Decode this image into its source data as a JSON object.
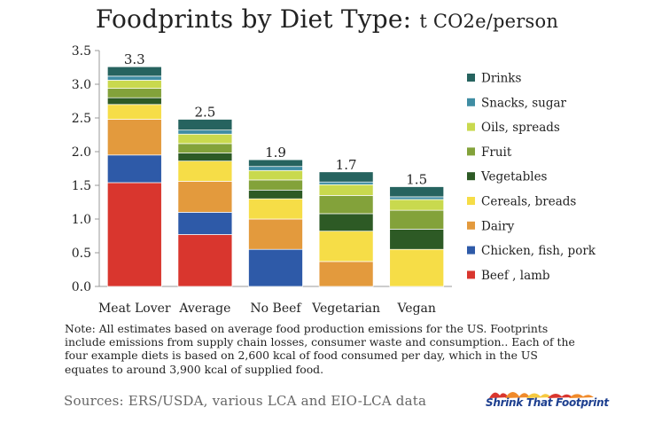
{
  "title": {
    "main": "Foodprints by Diet Type: ",
    "unit": "t CO2e/person"
  },
  "note": "Note: All estimates based on average food production emissions for the US. Footprints include emissions from supply chain losses, consumer waste and consumption.. Each of the four example diets is based on 2,600 kcal of food consumed per day, which in the US equates to around 3,900 kcal of supplied food.",
  "sources": "Sources:  ERS/USDA, various LCA and EIO-LCA data",
  "logo": {
    "text": "Shrink That Footprint"
  },
  "colors": {
    "beef_lamb": "#d9362e",
    "chicken_fish_pork": "#2e5aa8",
    "dairy": "#e39a3d",
    "cereals_breads": "#f6dd47",
    "vegetables": "#2d5a25",
    "fruit": "#83a23a",
    "oils_spreads": "#c9d94e",
    "snacks_sugar": "#3f8da3",
    "drinks": "#26635f"
  },
  "chart_data": {
    "type": "bar",
    "stacked": true,
    "categories": [
      "Meat Lover",
      "Average",
      "No Beef",
      "Vegetarian",
      "Vegan"
    ],
    "totals": [
      "3.3",
      "2.5",
      "1.9",
      "1.7",
      "1.5"
    ],
    "ylim": [
      0,
      3.5
    ],
    "yticks": [
      "0.0",
      "0.5",
      "1.0",
      "1.5",
      "2.0",
      "2.5",
      "3.0",
      "3.5"
    ],
    "grid": false,
    "legend_position": "right",
    "series": [
      {
        "name": "Beef , lamb",
        "color": "#d9362e",
        "values": [
          1.54,
          0.77,
          0,
          0,
          0
        ]
      },
      {
        "name": "Chicken, fish, pork",
        "color": "#2e5aa8",
        "values": [
          0.41,
          0.33,
          0.55,
          0,
          0
        ]
      },
      {
        "name": "Dairy",
        "color": "#e39a3d",
        "values": [
          0.53,
          0.46,
          0.45,
          0.37,
          0
        ]
      },
      {
        "name": "Cereals, breads",
        "color": "#f6dd47",
        "values": [
          0.22,
          0.3,
          0.3,
          0.45,
          0.55
        ]
      },
      {
        "name": "Vegetables",
        "color": "#2d5a25",
        "values": [
          0.1,
          0.12,
          0.13,
          0.26,
          0.3
        ]
      },
      {
        "name": "Fruit",
        "color": "#83a23a",
        "values": [
          0.14,
          0.14,
          0.15,
          0.27,
          0.28
        ]
      },
      {
        "name": "Oils, spreads",
        "color": "#c9d94e",
        "values": [
          0.12,
          0.14,
          0.14,
          0.16,
          0.16
        ]
      },
      {
        "name": "Snacks, sugar",
        "color": "#3f8da3",
        "values": [
          0.06,
          0.06,
          0.06,
          0.04,
          0.04
        ]
      },
      {
        "name": "Drinks",
        "color": "#26635f",
        "values": [
          0.14,
          0.16,
          0.1,
          0.15,
          0.15
        ]
      }
    ]
  }
}
